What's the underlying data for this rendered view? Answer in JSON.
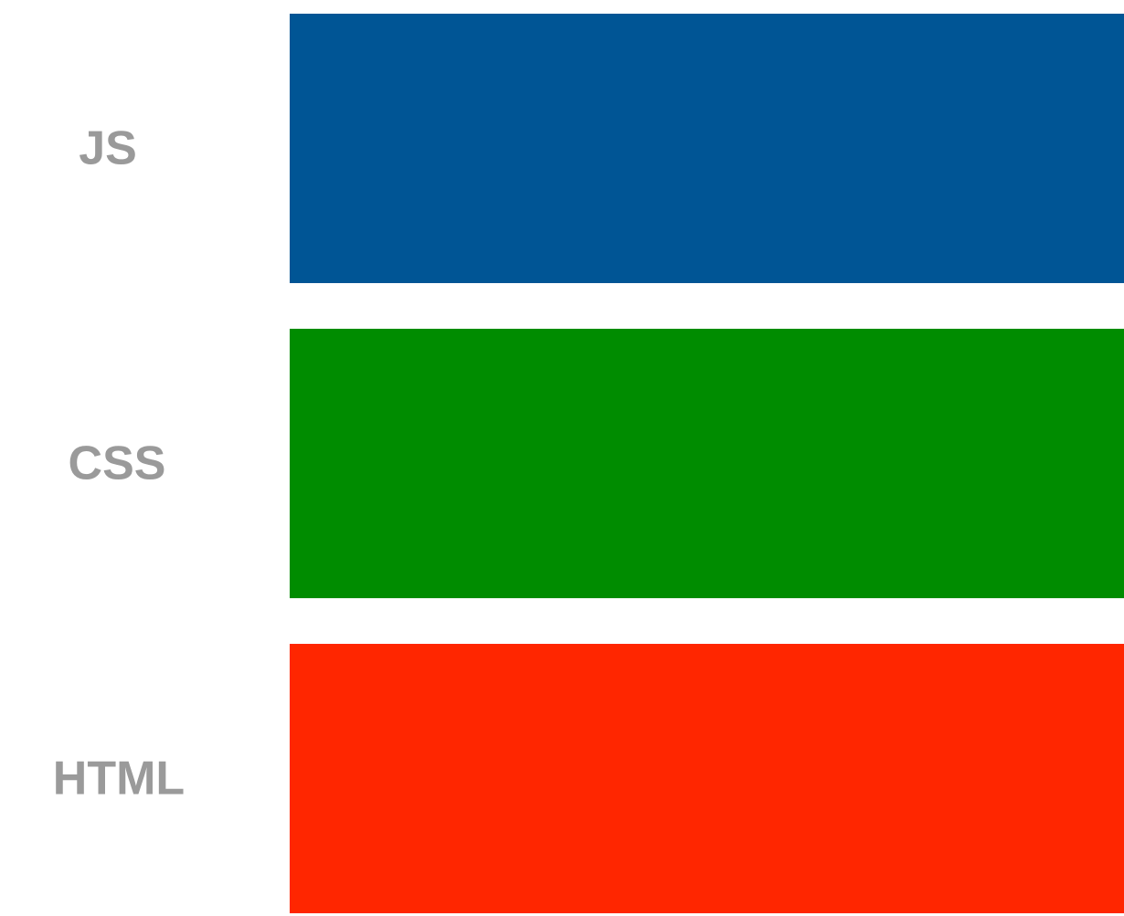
{
  "chart_data": {
    "type": "bar",
    "orientation": "horizontal",
    "categories": [
      "JS",
      "CSS",
      "HTML"
    ],
    "colors": [
      "#005595",
      "#008c00",
      "#ff2600"
    ],
    "axes_visible": false,
    "grid": false,
    "legend": "none"
  }
}
